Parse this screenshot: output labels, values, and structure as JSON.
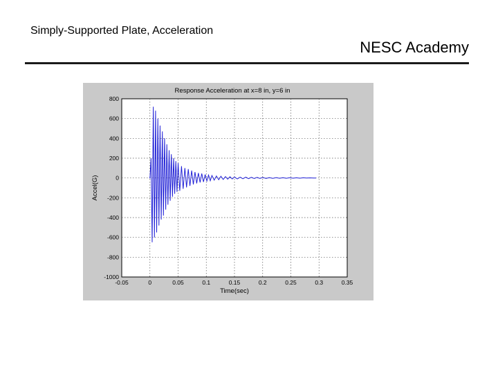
{
  "header": {
    "title": "Simply-Supported Plate, Acceleration",
    "brand": "NESC Academy"
  },
  "chart_data": {
    "type": "line",
    "title": "Response Acceleration at x=8 in, y=6 in",
    "xlabel": "Time(sec)",
    "ylabel": "Accel(G)",
    "xlim": [
      -0.05,
      0.35
    ],
    "ylim": [
      -1000,
      800
    ],
    "x_ticks": [
      -0.05,
      0,
      0.05,
      0.1,
      0.15,
      0.2,
      0.25,
      0.3,
      0.35
    ],
    "x_tick_labels": [
      "-0.05",
      "0",
      "0.05",
      "0.1",
      "0.15",
      "0.2",
      "0.25",
      "0.3",
      "0.35"
    ],
    "y_ticks": [
      800,
      600,
      400,
      200,
      0,
      -200,
      -400,
      -600,
      -800,
      -1000
    ],
    "y_tick_labels": [
      "800",
      "600",
      "400",
      "200",
      "0",
      "-200",
      "-400",
      "-600",
      "-800",
      "-1000"
    ],
    "grid": true,
    "series": [
      {
        "color": "#1f1fd6",
        "x": [
          -0.001,
          0.0,
          0.002,
          0.004,
          0.006,
          0.008,
          0.01,
          0.012,
          0.014,
          0.016,
          0.018,
          0.02,
          0.022,
          0.024,
          0.026,
          0.028,
          0.03,
          0.032,
          0.034,
          0.036,
          0.038,
          0.04,
          0.042,
          0.044,
          0.046,
          0.048,
          0.05,
          0.053,
          0.056,
          0.059,
          0.062,
          0.065,
          0.068,
          0.071,
          0.074,
          0.077,
          0.08,
          0.083,
          0.086,
          0.089,
          0.092,
          0.095,
          0.098,
          0.101,
          0.104,
          0.107,
          0.11,
          0.114,
          0.118,
          0.122,
          0.126,
          0.13,
          0.134,
          0.138,
          0.142,
          0.146,
          0.15,
          0.155,
          0.16,
          0.165,
          0.17,
          0.175,
          0.18,
          0.185,
          0.19,
          0.195,
          0.2,
          0.206,
          0.212,
          0.218,
          0.224,
          0.23,
          0.236,
          0.242,
          0.248,
          0.254,
          0.26,
          0.266,
          0.272,
          0.278,
          0.284,
          0.29,
          0.295
        ],
        "y": [
          0,
          0,
          200,
          -650,
          720,
          -600,
          680,
          -550,
          600,
          -480,
          530,
          -420,
          470,
          -380,
          400,
          -320,
          340,
          -270,
          280,
          -230,
          240,
          -190,
          200,
          -160,
          170,
          -140,
          150,
          -130,
          120,
          -110,
          100,
          -95,
          90,
          -80,
          75,
          -65,
          60,
          -55,
          50,
          -45,
          45,
          -40,
          35,
          -30,
          30,
          -28,
          25,
          -22,
          20,
          -18,
          18,
          -15,
          14,
          -12,
          12,
          -10,
          10,
          -9,
          9,
          -8,
          8,
          -7,
          7,
          -6,
          6,
          -5,
          5,
          -5,
          4,
          -4,
          4,
          -3,
          3,
          -3,
          3,
          -2,
          2,
          -2,
          2,
          -1,
          1,
          0,
          0
        ]
      }
    ]
  }
}
